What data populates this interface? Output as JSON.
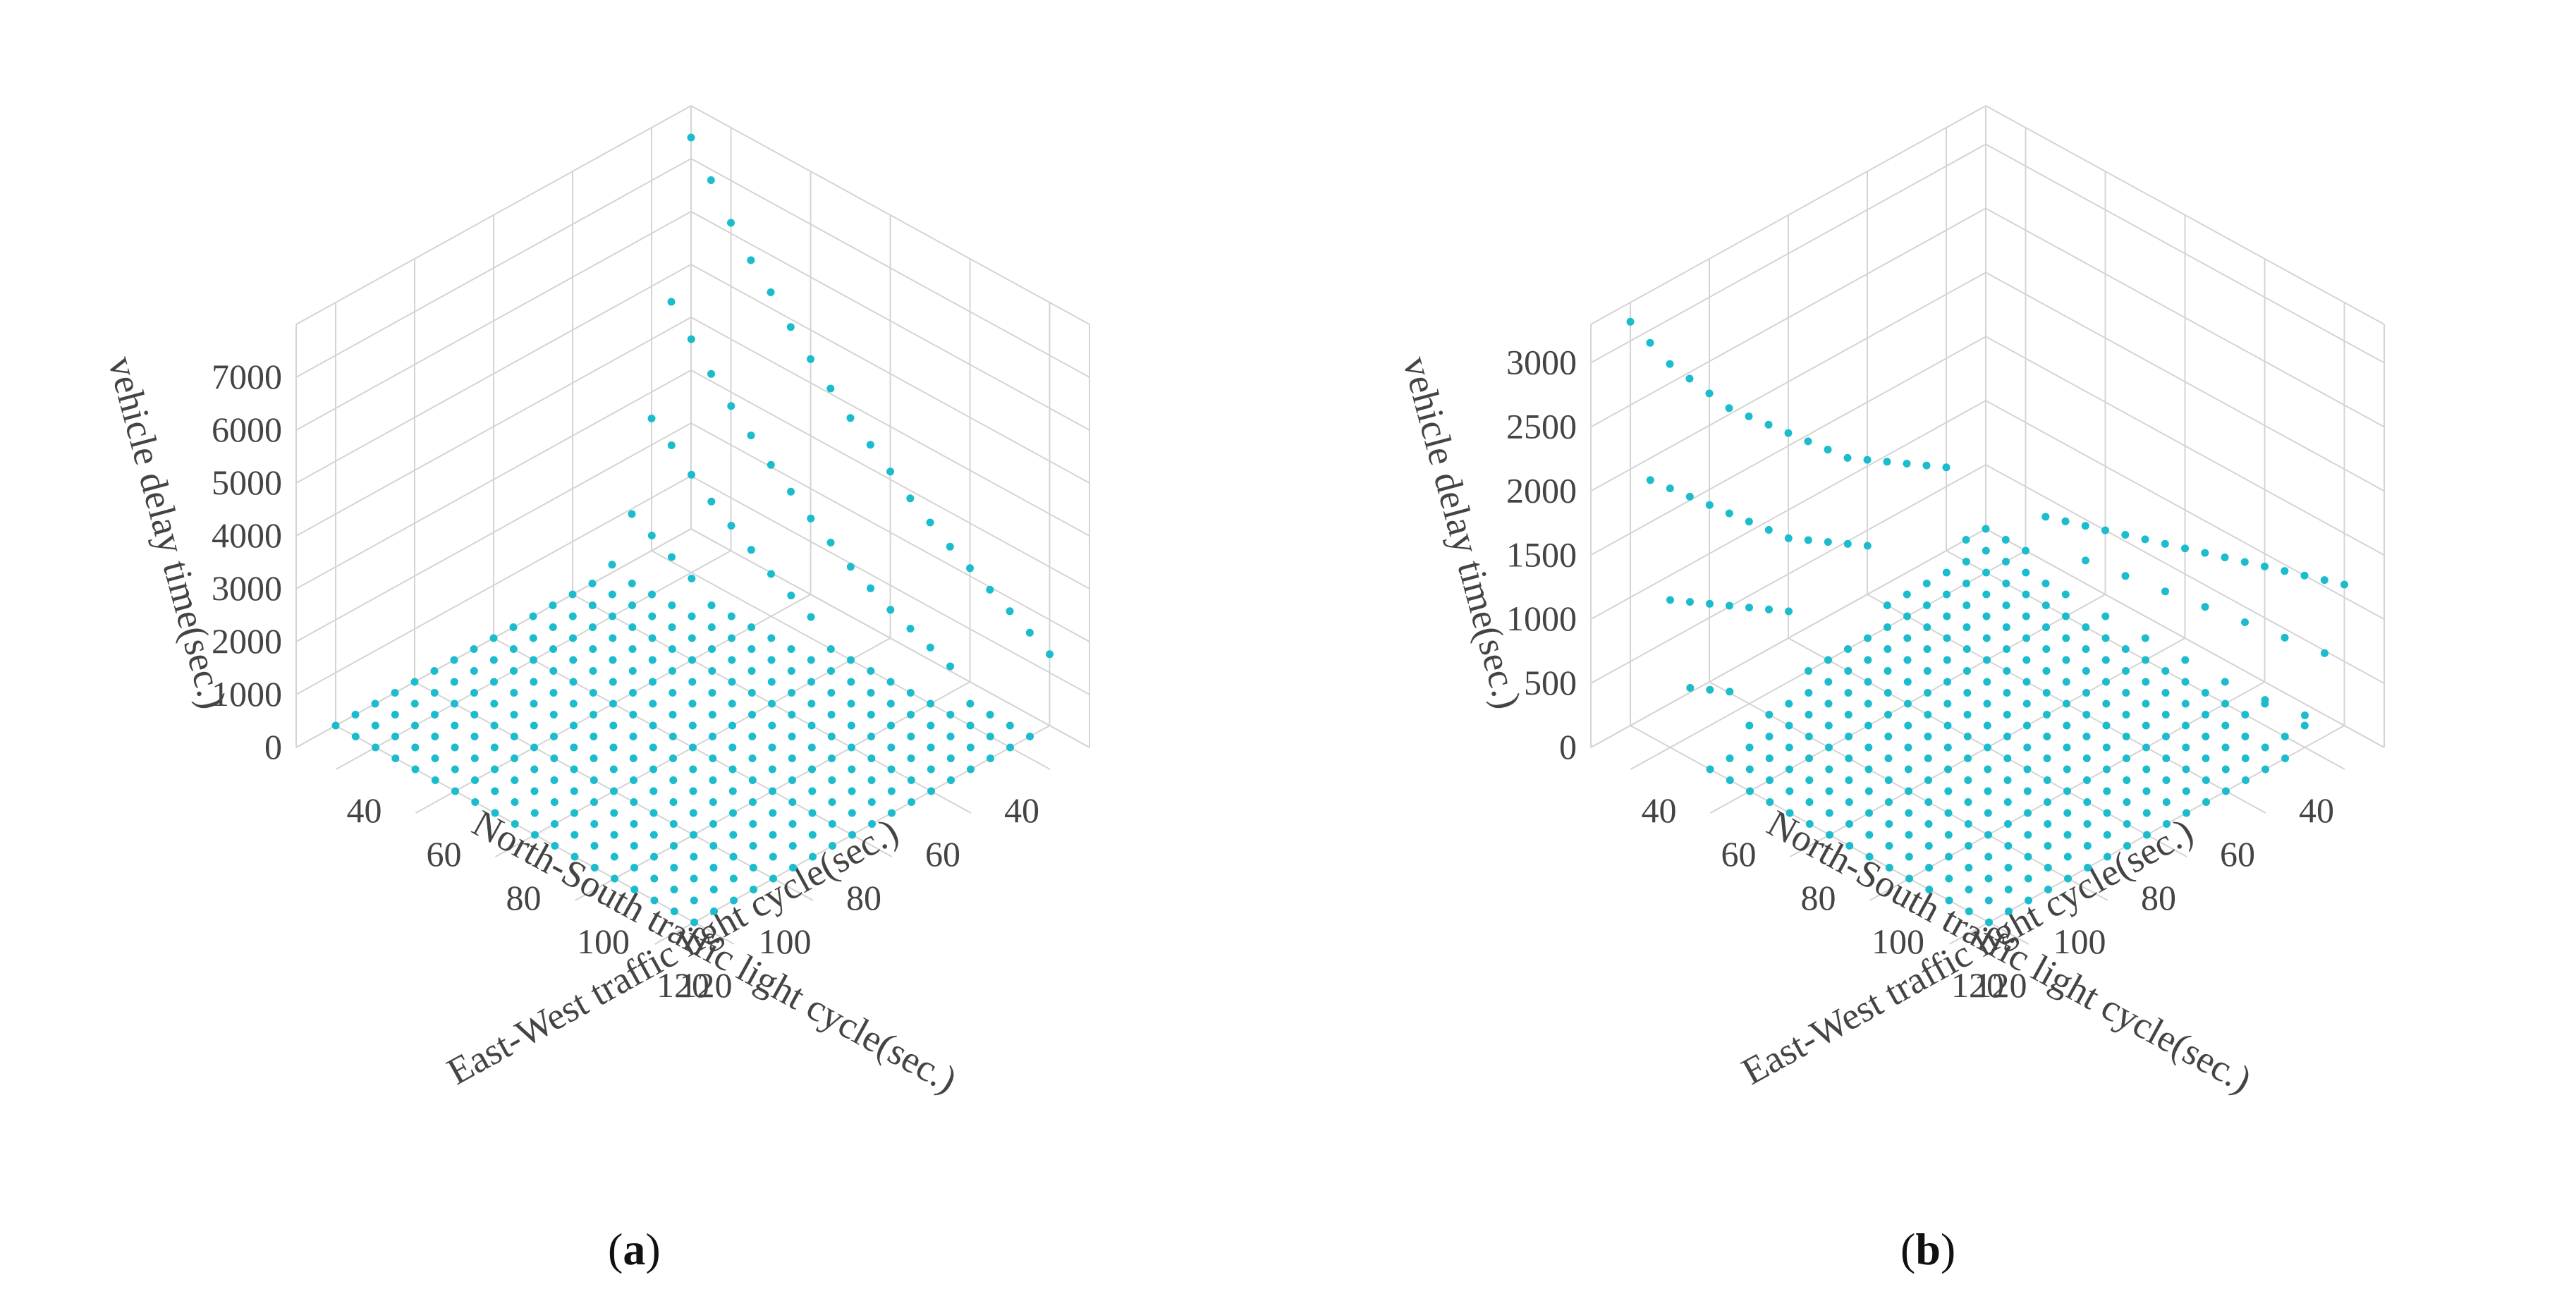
{
  "figure": {
    "captions": [
      {
        "open": "(",
        "letter": "a",
        "close": ")"
      },
      {
        "open": "(",
        "letter": "b",
        "close": ")"
      }
    ]
  },
  "chart_data": [
    {
      "type": "scatter",
      "subplot": "a",
      "x_label": "East-West traffic light cycle(sec.)",
      "y_label": "North-South traffic light cycle(sec.)",
      "z_label": "vehicle delay time(sec.)",
      "x_ticks": [
        "40",
        "60",
        "80",
        "100",
        "120"
      ],
      "y_ticks": [
        "40",
        "60",
        "80",
        "100",
        "120"
      ],
      "z_ticks": [
        "0",
        "1000",
        "2000",
        "3000",
        "4000",
        "5000",
        "6000",
        "7000"
      ],
      "x_range": [
        30,
        130
      ],
      "y_range": [
        30,
        130
      ],
      "z_range": [
        0,
        8000
      ],
      "grid_cycles": [
        30,
        35,
        40,
        45,
        50,
        55,
        60,
        65,
        70,
        75,
        80,
        85,
        90,
        95,
        100,
        105,
        110,
        115,
        120
      ],
      "series": [
        {
          "name": "delay",
          "color": "#1bbccc",
          "points": [
            {
              "ew": 30,
              "ns": 30,
              "delay": 7400
            },
            {
              "ew": 35,
              "ns": 30,
              "delay": 6800
            },
            {
              "ew": 40,
              "ns": 30,
              "delay": 6200
            },
            {
              "ew": 45,
              "ns": 30,
              "delay": 5700
            },
            {
              "ew": 50,
              "ns": 30,
              "delay": 5300
            },
            {
              "ew": 55,
              "ns": 30,
              "delay": 4850
            },
            {
              "ew": 60,
              "ns": 30,
              "delay": 4450
            },
            {
              "ew": 65,
              "ns": 30,
              "delay": 4100
            },
            {
              "ew": 70,
              "ns": 30,
              "delay": 3750
            },
            {
              "ew": 75,
              "ns": 30,
              "delay": 3450
            },
            {
              "ew": 80,
              "ns": 30,
              "delay": 3150
            },
            {
              "ew": 85,
              "ns": 30,
              "delay": 2850
            },
            {
              "ew": 90,
              "ns": 30,
              "delay": 2600
            },
            {
              "ew": 95,
              "ns": 30,
              "delay": 2350
            },
            {
              "ew": 100,
              "ns": 30,
              "delay": 2150
            },
            {
              "ew": 105,
              "ns": 30,
              "delay": 1950
            },
            {
              "ew": 110,
              "ns": 30,
              "delay": 1750
            },
            {
              "ew": 115,
              "ns": 30,
              "delay": 1550
            },
            {
              "ew": 120,
              "ns": 30,
              "delay": 1350
            },
            {
              "ew": 30,
              "ns": 35,
              "delay": 4500
            },
            {
              "ew": 35,
              "ns": 35,
              "delay": 4000
            },
            {
              "ew": 40,
              "ns": 35,
              "delay": 3550
            },
            {
              "ew": 45,
              "ns": 35,
              "delay": 3150
            },
            {
              "ew": 50,
              "ns": 35,
              "delay": 2800
            },
            {
              "ew": 55,
              "ns": 35,
              "delay": 2450
            },
            {
              "ew": 60,
              "ns": 35,
              "delay": 2150
            },
            {
              "ew": 65,
              "ns": 35,
              "delay": 1850
            },
            {
              "ew": 70,
              "ns": 35,
              "delay": 1600
            },
            {
              "ew": 75,
              "ns": 35,
              "delay": 1350
            },
            {
              "ew": 80,
              "ns": 35,
              "delay": 1150
            },
            {
              "ew": 85,
              "ns": 35,
              "delay": 950
            },
            {
              "ew": 90,
              "ns": 35,
              "delay": 800
            },
            {
              "ew": 95,
              "ns": 35,
              "delay": 650
            },
            {
              "ew": 100,
              "ns": 35,
              "delay": 500
            },
            {
              "ew": 30,
              "ns": 40,
              "delay": 2500
            },
            {
              "ew": 35,
              "ns": 40,
              "delay": 2200
            },
            {
              "ew": 40,
              "ns": 40,
              "delay": 1850
            },
            {
              "ew": 45,
              "ns": 40,
              "delay": 1550
            },
            {
              "ew": 50,
              "ns": 40,
              "delay": 1300
            },
            {
              "ew": 55,
              "ns": 40,
              "delay": 1050
            },
            {
              "ew": 60,
              "ns": 40,
              "delay": 800
            },
            {
              "ew": 65,
              "ns": 40,
              "delay": 600
            },
            {
              "ew": 70,
              "ns": 40,
              "delay": 400
            },
            {
              "ew": 30,
              "ns": 45,
              "delay": 900
            },
            {
              "ew": 35,
              "ns": 45,
              "delay": 700
            },
            {
              "ew": 40,
              "ns": 45,
              "delay": 500
            },
            {
              "ew": 45,
              "ns": 45,
              "delay": 300
            },
            {
              "ew": 30,
              "ns": 50,
              "delay": 150
            }
          ]
        }
      ],
      "floor_default_delay": 0,
      "view": "corner at (ew=30, ns=30) in the back, East-West axis runs down-right, North-South axis runs down-left"
    },
    {
      "type": "scatter",
      "subplot": "b",
      "x_label": "East-West traffic light cycle(sec.)",
      "y_label": "North-South traffic light cycle(sec.)",
      "z_label": "vehicle delay time(sec.)",
      "x_ticks": [
        "40",
        "60",
        "80",
        "100",
        "120"
      ],
      "y_ticks": [
        "40",
        "60",
        "80",
        "100",
        "120"
      ],
      "z_ticks": [
        "0",
        "500",
        "1000",
        "1500",
        "2000",
        "2500",
        "3000"
      ],
      "x_range": [
        30,
        130
      ],
      "y_range": [
        30,
        130
      ],
      "z_range": [
        0,
        3300
      ],
      "grid_cycles": [
        30,
        35,
        40,
        45,
        50,
        55,
        60,
        65,
        70,
        75,
        80,
        85,
        90,
        95,
        100,
        105,
        110,
        115,
        120
      ],
      "series": [
        {
          "name": "delay",
          "color": "#1bbccc",
          "points": [
            {
              "ew": 30,
              "ns": 120,
              "delay": 3150
            },
            {
              "ew": 30,
              "ns": 115,
              "delay": 2900
            },
            {
              "ew": 30,
              "ns": 110,
              "delay": 2650
            },
            {
              "ew": 30,
              "ns": 105,
              "delay": 2450
            },
            {
              "ew": 30,
              "ns": 100,
              "delay": 2250
            },
            {
              "ew": 30,
              "ns": 95,
              "delay": 2050
            },
            {
              "ew": 30,
              "ns": 90,
              "delay": 1900
            },
            {
              "ew": 30,
              "ns": 85,
              "delay": 1750
            },
            {
              "ew": 30,
              "ns": 80,
              "delay": 1600
            },
            {
              "ew": 30,
              "ns": 75,
              "delay": 1450
            },
            {
              "ew": 30,
              "ns": 70,
              "delay": 1300
            },
            {
              "ew": 30,
              "ns": 65,
              "delay": 1150
            },
            {
              "ew": 30,
              "ns": 60,
              "delay": 1050
            },
            {
              "ew": 30,
              "ns": 55,
              "delay": 950
            },
            {
              "ew": 30,
              "ns": 50,
              "delay": 850
            },
            {
              "ew": 30,
              "ns": 45,
              "delay": 750
            },
            {
              "ew": 30,
              "ns": 40,
              "delay": 650
            },
            {
              "ew": 35,
              "ns": 120,
              "delay": 2000
            },
            {
              "ew": 35,
              "ns": 115,
              "delay": 1850
            },
            {
              "ew": 35,
              "ns": 110,
              "delay": 1700
            },
            {
              "ew": 35,
              "ns": 105,
              "delay": 1550
            },
            {
              "ew": 35,
              "ns": 100,
              "delay": 1400
            },
            {
              "ew": 35,
              "ns": 95,
              "delay": 1250
            },
            {
              "ew": 35,
              "ns": 90,
              "delay": 1100
            },
            {
              "ew": 35,
              "ns": 85,
              "delay": 950
            },
            {
              "ew": 35,
              "ns": 80,
              "delay": 850
            },
            {
              "ew": 35,
              "ns": 75,
              "delay": 750
            },
            {
              "ew": 35,
              "ns": 70,
              "delay": 650
            },
            {
              "ew": 35,
              "ns": 65,
              "delay": 550
            },
            {
              "ew": 40,
              "ns": 120,
              "delay": 1150
            },
            {
              "ew": 40,
              "ns": 115,
              "delay": 1050
            },
            {
              "ew": 40,
              "ns": 110,
              "delay": 950
            },
            {
              "ew": 40,
              "ns": 105,
              "delay": 850
            },
            {
              "ew": 40,
              "ns": 100,
              "delay": 750
            },
            {
              "ew": 40,
              "ns": 95,
              "delay": 650
            },
            {
              "ew": 40,
              "ns": 90,
              "delay": 550
            },
            {
              "ew": 45,
              "ns": 120,
              "delay": 550
            },
            {
              "ew": 45,
              "ns": 115,
              "delay": 450
            },
            {
              "ew": 45,
              "ns": 110,
              "delay": 350
            },
            {
              "ew": 120,
              "ns": 30,
              "delay": 1100
            },
            {
              "ew": 115,
              "ns": 30,
              "delay": 1050
            },
            {
              "ew": 110,
              "ns": 30,
              "delay": 1000
            },
            {
              "ew": 105,
              "ns": 30,
              "delay": 950
            },
            {
              "ew": 100,
              "ns": 30,
              "delay": 900
            },
            {
              "ew": 95,
              "ns": 30,
              "delay": 850
            },
            {
              "ew": 90,
              "ns": 30,
              "delay": 800
            },
            {
              "ew": 85,
              "ns": 30,
              "delay": 750
            },
            {
              "ew": 80,
              "ns": 30,
              "delay": 700
            },
            {
              "ew": 75,
              "ns": 30,
              "delay": 650
            },
            {
              "ew": 70,
              "ns": 30,
              "delay": 600
            },
            {
              "ew": 65,
              "ns": 30,
              "delay": 550
            },
            {
              "ew": 60,
              "ns": 30,
              "delay": 500
            },
            {
              "ew": 55,
              "ns": 30,
              "delay": 450
            },
            {
              "ew": 50,
              "ns": 30,
              "delay": 400
            },
            {
              "ew": 45,
              "ns": 30,
              "delay": 350
            },
            {
              "ew": 120,
              "ns": 35,
              "delay": 650
            },
            {
              "ew": 110,
              "ns": 35,
              "delay": 600
            },
            {
              "ew": 100,
              "ns": 35,
              "delay": 550
            },
            {
              "ew": 90,
              "ns": 35,
              "delay": 500
            },
            {
              "ew": 80,
              "ns": 35,
              "delay": 450
            },
            {
              "ew": 70,
              "ns": 35,
              "delay": 400
            },
            {
              "ew": 60,
              "ns": 35,
              "delay": 350
            },
            {
              "ew": 120,
              "ns": 40,
              "delay": 250
            },
            {
              "ew": 110,
              "ns": 40,
              "delay": 200
            }
          ]
        }
      ],
      "floor_default_delay": 0,
      "view": "corner at (ew=30, ns=30) in the back, East-West axis runs down-right, North-South axis runs down-left"
    }
  ]
}
